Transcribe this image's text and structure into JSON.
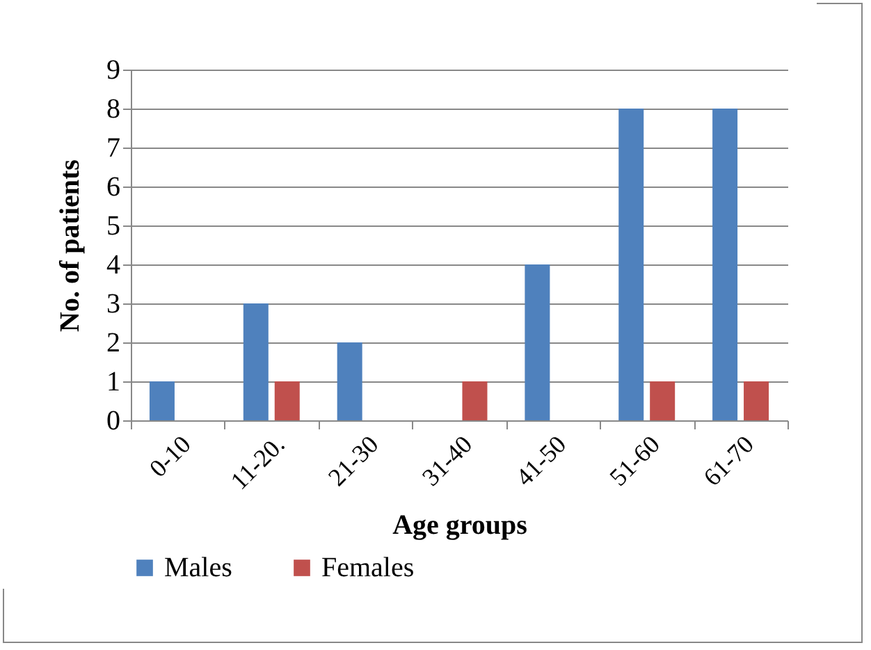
{
  "chart_data": {
    "type": "bar",
    "xlabel": "Age groups",
    "ylabel": "No. of patients",
    "categories": [
      "0-10",
      "11-20.",
      "21-30",
      "31-40",
      "41-50",
      "51-60",
      "61-70"
    ],
    "series": [
      {
        "name": "Males",
        "color": "#4f81bd",
        "values": [
          1,
          3,
          2,
          0,
          4,
          8,
          8
        ]
      },
      {
        "name": "Females",
        "color": "#c0504d",
        "values": [
          0,
          1,
          0,
          1,
          0,
          1,
          1
        ]
      }
    ],
    "ylim": [
      0,
      9
    ],
    "yticks": [
      0,
      1,
      2,
      3,
      4,
      5,
      6,
      7,
      8,
      9
    ],
    "grid": "y",
    "legend": "bottom"
  }
}
